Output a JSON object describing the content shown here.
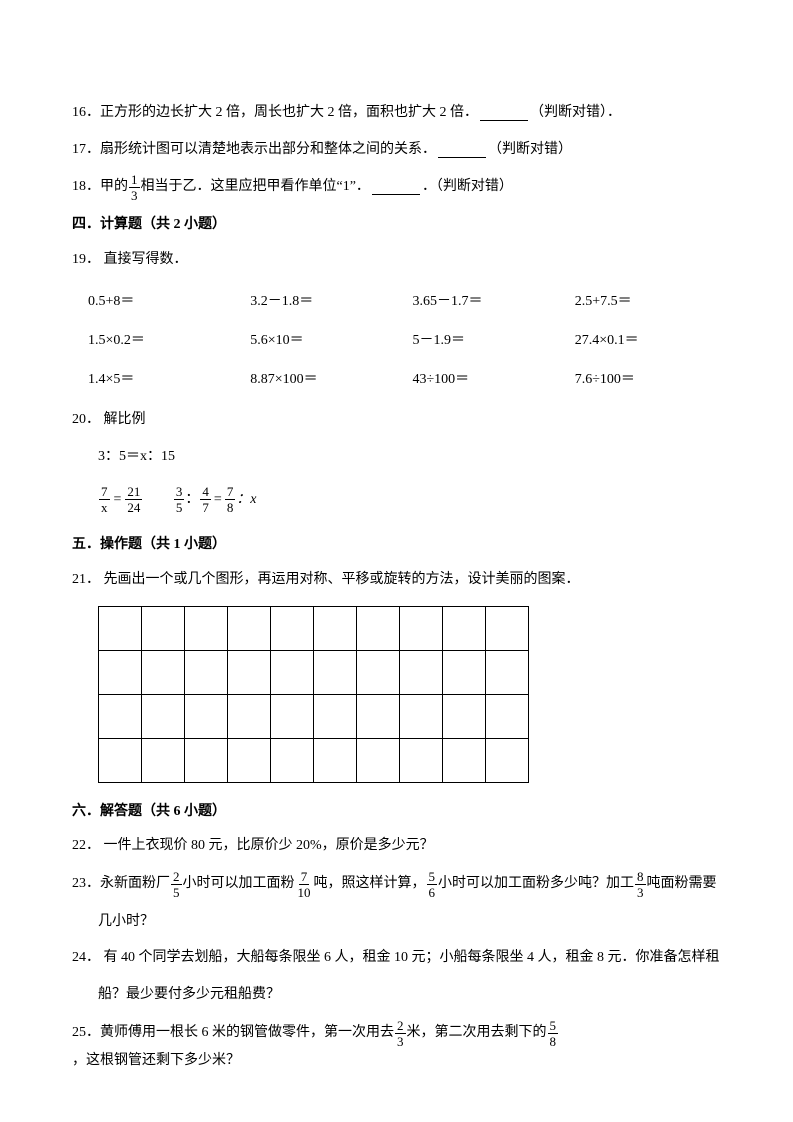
{
  "q16": {
    "num": "16．",
    "text_a": "正方形的边长扩大 2 倍，周长也扩大 2 倍，面积也扩大 2 倍．",
    "tail": "（判断对错）．"
  },
  "q17": {
    "num": "17．",
    "text_a": "扇形统计图可以清楚地表示出部分和整体之间的关系．",
    "tail": "（判断对错）"
  },
  "q18": {
    "num": "18．",
    "text_a": "甲的",
    "frac_n": "1",
    "frac_d": "3",
    "text_b": "相当于乙．这里应把甲看作单位“1”．",
    "tail": "．（判断对错）"
  },
  "sec4": {
    "title": "四．计算题（共 2 小题）"
  },
  "q19": {
    "num": "19．",
    "text": "直接写得数．",
    "rows": [
      [
        "0.5+8＝",
        "3.2－1.8＝",
        "3.65－1.7＝",
        "2.5+7.5＝"
      ],
      [
        "1.5×0.2＝",
        "5.6×10＝",
        "5－1.9＝",
        "27.4×0.1＝"
      ],
      [
        "1.4×5＝",
        "8.87×100＝",
        "43÷100＝",
        "7.6÷100＝"
      ]
    ]
  },
  "q20": {
    "num": "20．",
    "text": "解比例",
    "line1": "3：5＝x：15",
    "eq2": {
      "ln": "7",
      "ld": "x",
      "rn": "21",
      "rd": "24"
    },
    "eq3": {
      "an": "3",
      "ad": "5",
      "bn": "4",
      "bd": "7",
      "cn": "7",
      "cd": "8",
      "tail": "：x"
    }
  },
  "sec5": {
    "title": "五．操作题（共 1 小题）"
  },
  "q21": {
    "num": "21．",
    "text": "先画出一个或几个图形，再运用对称、平移或旋转的方法，设计美丽的图案．"
  },
  "grid": {
    "rows": 4,
    "cols": 10
  },
  "sec6": {
    "title": "六．解答题（共 6 小题）"
  },
  "q22": {
    "num": "22．",
    "text": "一件上衣现价 80 元，比原价少 20%，原价是多少元？"
  },
  "q23": {
    "num": "23．",
    "a": "永新面粉厂",
    "f1n": "2",
    "f1d": "5",
    "b": "小时可以加工面粉",
    "f2n": "7",
    "f2d": "10",
    "c": "吨，照这样计算，",
    "f3n": "5",
    "f3d": "6",
    "d": "小时可以加工面粉多少吨？加工",
    "f4n": "8",
    "f4d": "3",
    "e": "吨面粉需要",
    "line2": "几小时？"
  },
  "q24": {
    "num": "24．",
    "a": "有 40 个同学去划船，大船每条限坐 6 人，租金 10 元；小船每条限坐 4 人，租金 8 元．你准备怎样租",
    "b": "船？最少要付多少元租船费？"
  },
  "q25": {
    "num": "25．",
    "a": "黄师傅用一根长 6 米的钢管做零件，第一次用去",
    "f1n": "2",
    "f1d": "3",
    "b": "米，第二次用去剩下的",
    "f2n": "5",
    "f2d": "8",
    "c": "，这根钢管还剩下多少米？"
  },
  "colors": {
    "text": "#000000",
    "bg": "#ffffff",
    "border": "#000000"
  }
}
